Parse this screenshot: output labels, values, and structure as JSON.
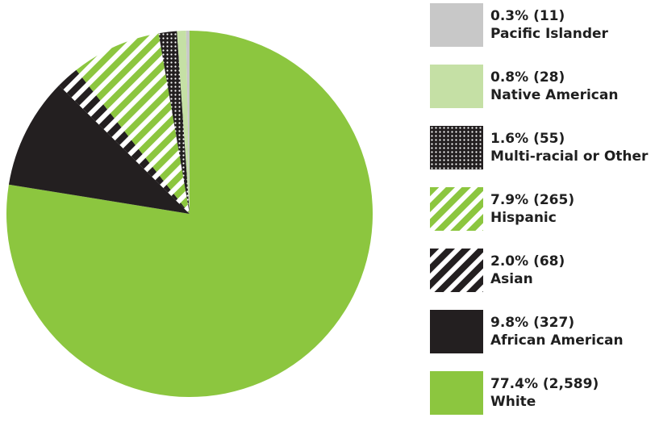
{
  "chart_data": {
    "type": "pie",
    "title": "",
    "legend_position": "right",
    "slices": [
      {
        "label": "White",
        "value": 77.4,
        "count_text": "77.4% (2,589)",
        "color": "#8cc63f",
        "pattern": "solid-green"
      },
      {
        "label": "African American",
        "value": 9.8,
        "count_text": "9.8% (327)",
        "color": "#231f20",
        "pattern": "solid-black"
      },
      {
        "label": "Asian",
        "value": 2.0,
        "count_text": "2.0% (68)",
        "color": "#231f20",
        "pattern": "black-white-stripes"
      },
      {
        "label": "Hispanic",
        "value": 7.9,
        "count_text": "7.9% (265)",
        "color": "#8cc63f",
        "pattern": "green-white-stripes"
      },
      {
        "label": "Multi-racial or Other",
        "value": 1.6,
        "count_text": "1.6% (55)",
        "color": "#231f20",
        "pattern": "black-white-dots"
      },
      {
        "label": "Native American",
        "value": 0.8,
        "count_text": "0.8% (28)",
        "color": "#c5e0a5",
        "pattern": "solid-light-green"
      },
      {
        "label": "Pacific Islander",
        "value": 0.3,
        "count_text": "0.3% (11)",
        "color": "#c8c8c8",
        "pattern": "solid-gray"
      }
    ],
    "legend_order": [
      "Pacific Islander",
      "Native American",
      "Multi-racial or Other",
      "Hispanic",
      "Asian",
      "African American",
      "White"
    ]
  }
}
